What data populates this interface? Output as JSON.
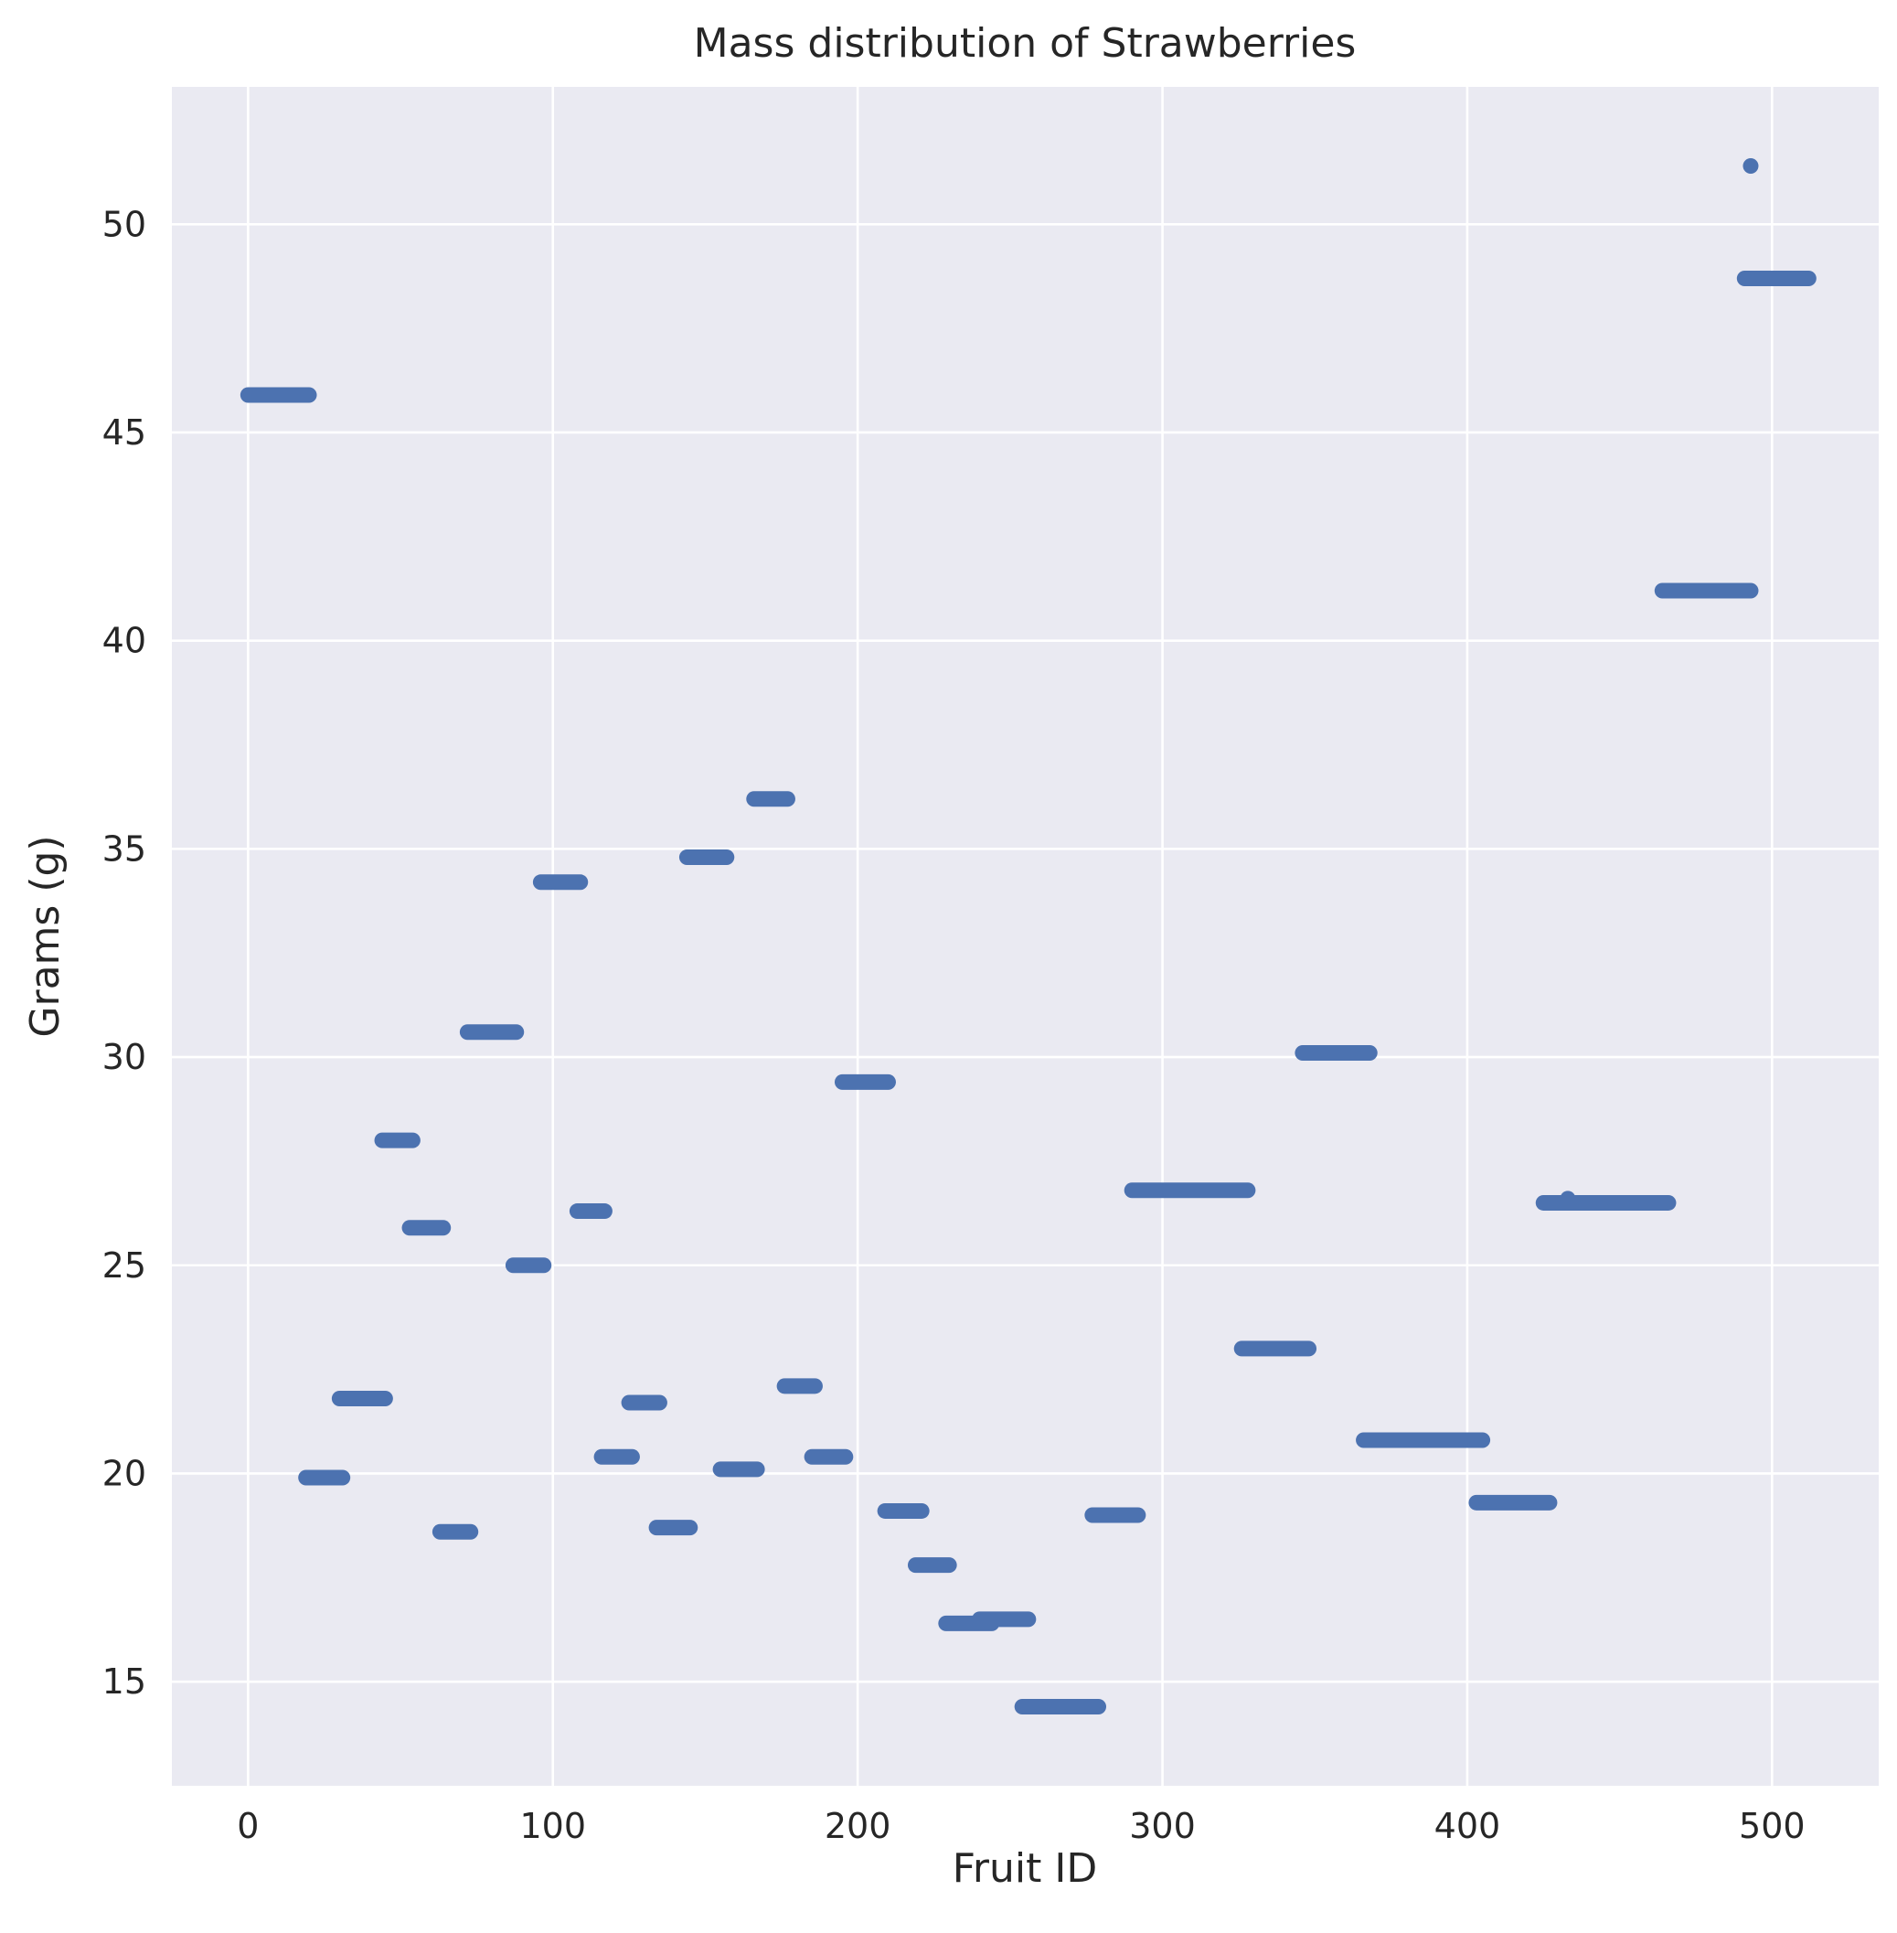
{
  "chart_data": {
    "type": "scatter",
    "title": "Mass distribution of Strawberries",
    "xlabel": "Fruit ID",
    "ylabel": "Grams (g)",
    "xlim": [
      -25,
      535
    ],
    "ylim": [
      12.5,
      53.3
    ],
    "x_ticks": [
      0,
      100,
      200,
      300,
      400,
      500
    ],
    "y_ticks": [
      15,
      20,
      25,
      30,
      35,
      40,
      45,
      50
    ],
    "x_tick_labels": [
      "0",
      "100",
      "200",
      "300",
      "400",
      "500"
    ],
    "y_tick_labels": [
      "15",
      "20",
      "25",
      "30",
      "35",
      "40",
      "45",
      "50"
    ],
    "grid": true,
    "legend": "none",
    "colors": {
      "background": "#eaeaf2",
      "grid": "#ffffff",
      "marker": "#4c72b0"
    },
    "series": [
      {
        "segments": [
          {
            "x_start": 0,
            "x_end": 20,
            "y": 45.9
          },
          {
            "x_start": 19,
            "x_end": 31,
            "y": 19.9
          },
          {
            "x_start": 30,
            "x_end": 45,
            "y": 21.8
          },
          {
            "x_start": 44,
            "x_end": 54,
            "y": 28.0
          },
          {
            "x_start": 53,
            "x_end": 64,
            "y": 25.9
          },
          {
            "x_start": 63,
            "x_end": 73,
            "y": 18.6
          },
          {
            "x_start": 72,
            "x_end": 88,
            "y": 30.6
          },
          {
            "x_start": 87,
            "x_end": 97,
            "y": 25.0
          },
          {
            "x_start": 96,
            "x_end": 109,
            "y": 34.2
          },
          {
            "x_start": 108,
            "x_end": 117,
            "y": 26.3
          },
          {
            "x_start": 116,
            "x_end": 126,
            "y": 20.4
          },
          {
            "x_start": 125,
            "x_end": 135,
            "y": 21.7
          },
          {
            "x_start": 134,
            "x_end": 145,
            "y": 18.7
          },
          {
            "x_start": 144,
            "x_end": 157,
            "y": 34.8
          },
          {
            "x_start": 155,
            "x_end": 167,
            "y": 20.1
          },
          {
            "x_start": 166,
            "x_end": 177,
            "y": 36.2
          },
          {
            "x_start": 176,
            "x_end": 186,
            "y": 22.1
          },
          {
            "x_start": 185,
            "x_end": 196,
            "y": 20.4
          },
          {
            "x_start": 195,
            "x_end": 210,
            "y": 29.4
          },
          {
            "x_start": 209,
            "x_end": 221,
            "y": 19.1
          },
          {
            "x_start": 219,
            "x_end": 230,
            "y": 17.8
          },
          {
            "x_start": 229,
            "x_end": 244,
            "y": 16.4
          },
          {
            "x_start": 240,
            "x_end": 256,
            "y": 16.5
          },
          {
            "x_start": 254,
            "x_end": 279,
            "y": 14.4
          },
          {
            "x_start": 277,
            "x_end": 292,
            "y": 19.0
          },
          {
            "x_start": 290,
            "x_end": 328,
            "y": 26.8
          },
          {
            "x_start": 326,
            "x_end": 348,
            "y": 23.0
          },
          {
            "x_start": 346,
            "x_end": 368,
            "y": 30.1
          },
          {
            "x_start": 366,
            "x_end": 405,
            "y": 20.8
          },
          {
            "x_start": 403,
            "x_end": 427,
            "y": 19.3
          },
          {
            "x_start": 425,
            "x_end": 466,
            "y": 26.5
          },
          {
            "x_start": 464,
            "x_end": 493,
            "y": 41.2
          },
          {
            "x_start": 491,
            "x_end": 512,
            "y": 48.7
          }
        ],
        "points": [
          {
            "x": 433,
            "y": 26.6
          },
          {
            "x": 493,
            "y": 51.4
          }
        ]
      }
    ]
  }
}
